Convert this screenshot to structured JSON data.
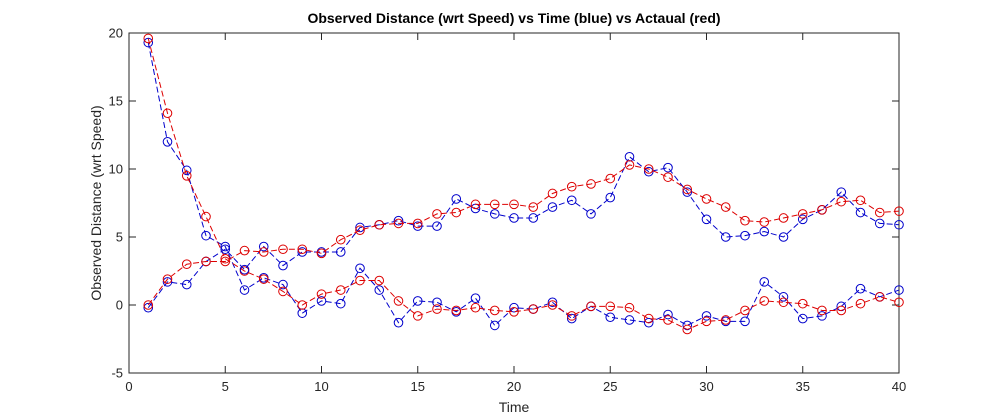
{
  "chart_data": {
    "type": "line",
    "title": "Observed Distance (wrt Speed) vs Time (blue) vs Actaual (red)",
    "xlabel": "Time",
    "ylabel": "Observed Distance (wrt Speed)",
    "xlim": [
      0,
      40
    ],
    "ylim": [
      -5,
      20
    ],
    "xticks": [
      0,
      5,
      10,
      15,
      20,
      25,
      30,
      35,
      40
    ],
    "yticks": [
      -5,
      0,
      5,
      10,
      15,
      20
    ],
    "grid": false,
    "marker": "circle",
    "line_style": "dashed",
    "x": [
      1,
      2,
      3,
      4,
      5,
      6,
      7,
      8,
      9,
      10,
      11,
      12,
      13,
      14,
      15,
      16,
      17,
      18,
      19,
      20,
      21,
      22,
      23,
      24,
      25,
      26,
      27,
      28,
      29,
      30,
      31,
      32,
      33,
      34,
      35,
      36,
      37,
      38,
      39,
      40
    ],
    "series": [
      {
        "color": "#0000cc",
        "values": [
          19.3,
          12.0,
          9.9,
          5.1,
          4.3,
          1.1,
          2.0,
          1.5,
          -0.6,
          0.3,
          0.1,
          2.7,
          1.1,
          -1.3,
          0.3,
          0.2,
          -0.5,
          0.5,
          -1.5,
          -0.2,
          -0.3,
          0.2,
          -1.0,
          -0.1,
          -0.9,
          -1.1,
          -1.3,
          -0.7,
          -1.5,
          -0.8,
          -1.2,
          -1.2,
          1.7,
          0.6,
          -1.0,
          -0.8,
          -0.1,
          1.2,
          0.6,
          1.1
        ]
      },
      {
        "color": "#dd0000",
        "values": [
          19.6,
          14.1,
          9.5,
          6.5,
          3.4,
          2.5,
          1.9,
          1.0,
          0.0,
          0.8,
          1.1,
          1.8,
          1.8,
          0.3,
          -0.8,
          -0.3,
          -0.4,
          -0.2,
          -0.4,
          -0.5,
          -0.3,
          0.0,
          -0.8,
          -0.1,
          -0.1,
          -0.2,
          -1.0,
          -1.1,
          -1.8,
          -1.2,
          -1.1,
          -0.4,
          0.3,
          0.2,
          0.1,
          -0.4,
          -0.4,
          0.1,
          0.6,
          0.2
        ]
      },
      {
        "color": "#0000cc",
        "values": [
          -0.2,
          1.7,
          1.5,
          3.2,
          4.1,
          2.6,
          4.3,
          2.9,
          3.9,
          3.9,
          3.9,
          5.7,
          5.9,
          6.2,
          5.8,
          5.8,
          7.8,
          7.1,
          6.7,
          6.4,
          6.4,
          7.2,
          7.7,
          6.7,
          7.9,
          10.9,
          9.8,
          10.1,
          8.3,
          6.3,
          5.0,
          5.1,
          5.4,
          5.0,
          6.3,
          7.0,
          8.3,
          6.8,
          6.0,
          5.9
        ]
      },
      {
        "color": "#dd0000",
        "values": [
          0.0,
          1.9,
          3.0,
          3.2,
          3.2,
          4.0,
          3.9,
          4.1,
          4.1,
          3.8,
          4.8,
          5.5,
          5.9,
          6.0,
          6.0,
          6.7,
          6.8,
          7.4,
          7.4,
          7.4,
          7.2,
          8.2,
          8.7,
          8.9,
          9.3,
          10.3,
          10.0,
          9.4,
          8.5,
          7.8,
          7.2,
          6.2,
          6.1,
          6.4,
          6.7,
          7.0,
          7.6,
          7.7,
          6.8,
          6.9
        ]
      }
    ]
  }
}
